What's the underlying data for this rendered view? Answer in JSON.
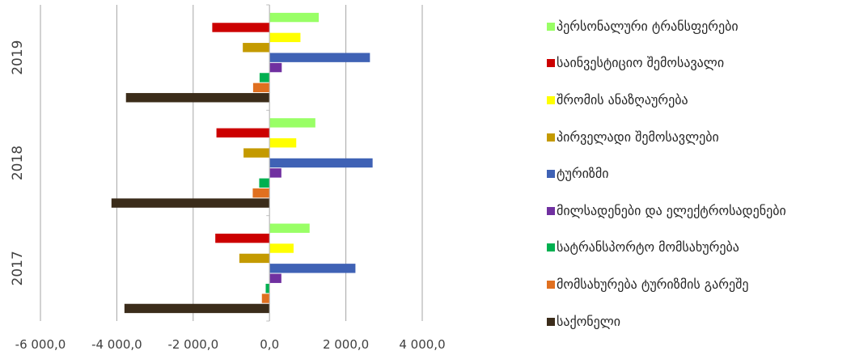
{
  "chart_data": {
    "type": "bar",
    "orientation": "horizontal",
    "categories": [
      "2017",
      "2018",
      "2019"
    ],
    "xlim": [
      -6000,
      4000
    ],
    "xticks": [
      -6000,
      -4000,
      -2000,
      0,
      2000,
      4000
    ],
    "xtick_labels": [
      "-6 000,0",
      "-4 000,0",
      "-2 000,0",
      "0,0",
      "2 000,0",
      "4 000,0"
    ],
    "grid": true,
    "legend_position": "right",
    "series": [
      {
        "name": "პერსონალური ტრანსფერები",
        "color": "#99ff66",
        "values": [
          1050,
          1200,
          1290
        ]
      },
      {
        "name": "საინვესტიციო შემოსავალი",
        "color": "#cc0000",
        "values": [
          -1420,
          -1390,
          -1500
        ]
      },
      {
        "name": "შრომის ანაზღაურება",
        "color": "#ffff00",
        "values": [
          630,
          700,
          810
        ]
      },
      {
        "name": "პირველადი შემოსავლები",
        "color": "#c49a00",
        "values": [
          -790,
          -680,
          -700
        ]
      },
      {
        "name": "ტურიზმი",
        "color": "#3f62b5",
        "values": [
          2250,
          2700,
          2630
        ]
      },
      {
        "name": "მილსადენები და ელექტროსადენები",
        "color": "#7030a0",
        "values": [
          310,
          310,
          320
        ]
      },
      {
        "name": "სატრანსპორტო მომსახურება",
        "color": "#00b050",
        "values": [
          -100,
          -270,
          -260
        ]
      },
      {
        "name": "მომსახურება ტურიზმის გარეშე",
        "color": "#e07020",
        "values": [
          -200,
          -440,
          -430
        ]
      },
      {
        "name": "საქონელი",
        "color": "#3b2c1a",
        "values": [
          -3800,
          -4140,
          -3760
        ]
      }
    ]
  }
}
